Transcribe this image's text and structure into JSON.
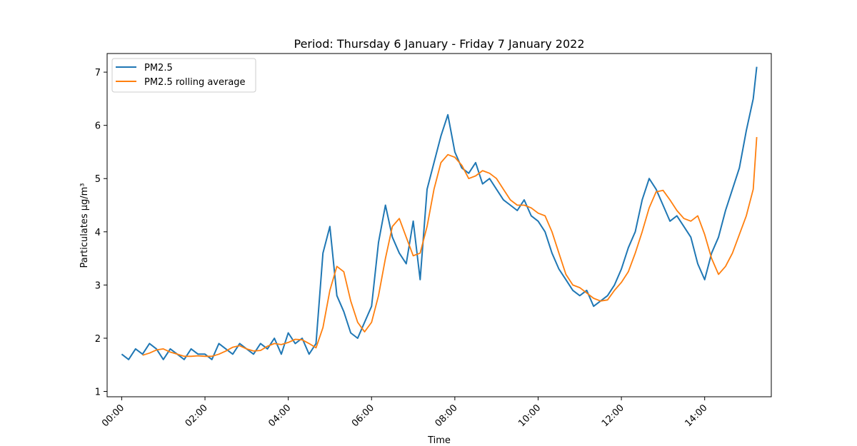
{
  "chart_data": {
    "type": "line",
    "title": "Period: Thursday 6 January - Friday 7 January 2022",
    "xlabel": "Time",
    "ylabel": "Particulates µg/m³",
    "xlim": [
      "23:39",
      "15:36"
    ],
    "ylim": [
      0.9,
      7.35
    ],
    "x_ticks": [
      "00:00",
      "02:00",
      "04:00",
      "06:00",
      "08:00",
      "10:00",
      "12:00",
      "14:00"
    ],
    "y_ticks": [
      1,
      2,
      3,
      4,
      5,
      6,
      7
    ],
    "grid": false,
    "legend_position": "upper-left",
    "colors": {
      "pm25": "#1f77b4",
      "rolling": "#ff7f0e"
    },
    "series": [
      {
        "name": "PM2.5",
        "x": [
          "00:00",
          "00:10",
          "00:20",
          "00:30",
          "00:40",
          "00:50",
          "01:00",
          "01:10",
          "01:20",
          "01:30",
          "01:40",
          "01:50",
          "02:00",
          "02:10",
          "02:20",
          "02:30",
          "02:40",
          "02:50",
          "03:00",
          "03:10",
          "03:20",
          "03:30",
          "03:40",
          "03:50",
          "04:00",
          "04:10",
          "04:20",
          "04:30",
          "04:40",
          "04:50",
          "05:00",
          "05:10",
          "05:20",
          "05:30",
          "05:40",
          "05:50",
          "06:00",
          "06:10",
          "06:20",
          "06:30",
          "06:40",
          "06:50",
          "07:00",
          "07:10",
          "07:20",
          "07:30",
          "07:40",
          "07:50",
          "08:00",
          "08:10",
          "08:20",
          "08:30",
          "08:40",
          "08:50",
          "09:00",
          "09:10",
          "09:20",
          "09:30",
          "09:40",
          "09:50",
          "10:00",
          "10:10",
          "10:20",
          "10:30",
          "10:40",
          "10:50",
          "11:00",
          "11:10",
          "11:20",
          "11:30",
          "11:40",
          "11:50",
          "12:00",
          "12:10",
          "12:20",
          "12:30",
          "12:40",
          "12:50",
          "13:00",
          "13:10",
          "13:20",
          "13:30",
          "13:40",
          "13:50",
          "14:00",
          "14:10",
          "14:20",
          "14:30",
          "14:40",
          "14:50",
          "15:00",
          "15:10",
          "15:15"
        ],
        "values": [
          1.7,
          1.6,
          1.8,
          1.7,
          1.9,
          1.8,
          1.6,
          1.8,
          1.7,
          1.6,
          1.8,
          1.7,
          1.7,
          1.6,
          1.9,
          1.8,
          1.7,
          1.9,
          1.8,
          1.7,
          1.9,
          1.8,
          2.0,
          1.7,
          2.1,
          1.9,
          2.0,
          1.7,
          1.9,
          3.6,
          4.1,
          2.8,
          2.5,
          2.1,
          2.0,
          2.3,
          2.6,
          3.8,
          4.5,
          3.9,
          3.6,
          3.4,
          4.2,
          3.1,
          4.8,
          5.3,
          5.8,
          6.2,
          5.5,
          5.2,
          5.1,
          5.3,
          4.9,
          5.0,
          4.8,
          4.6,
          4.5,
          4.4,
          4.6,
          4.3,
          4.2,
          4.0,
          3.6,
          3.3,
          3.1,
          2.9,
          2.8,
          2.9,
          2.6,
          2.7,
          2.8,
          3.0,
          3.3,
          3.7,
          4.0,
          4.6,
          5.0,
          4.8,
          4.5,
          4.2,
          4.3,
          4.1,
          3.9,
          3.4,
          3.1,
          3.6,
          3.9,
          4.4,
          4.8,
          5.2,
          5.9,
          6.5,
          7.1
        ]
      },
      {
        "name": "PM2.5 rolling average",
        "x": [
          "00:30",
          "00:40",
          "00:50",
          "01:00",
          "01:10",
          "01:20",
          "01:30",
          "01:40",
          "01:50",
          "02:00",
          "02:10",
          "02:20",
          "02:30",
          "02:40",
          "02:50",
          "03:00",
          "03:10",
          "03:20",
          "03:30",
          "03:40",
          "03:50",
          "04:00",
          "04:10",
          "04:20",
          "04:30",
          "04:40",
          "04:50",
          "05:00",
          "05:10",
          "05:20",
          "05:30",
          "05:40",
          "05:50",
          "06:00",
          "06:10",
          "06:20",
          "06:30",
          "06:40",
          "06:50",
          "07:00",
          "07:10",
          "07:20",
          "07:30",
          "07:40",
          "07:50",
          "08:00",
          "08:10",
          "08:20",
          "08:30",
          "08:40",
          "08:50",
          "09:00",
          "09:10",
          "09:20",
          "09:30",
          "09:40",
          "09:50",
          "10:00",
          "10:10",
          "10:20",
          "10:30",
          "10:40",
          "10:50",
          "11:00",
          "11:10",
          "11:20",
          "11:30",
          "11:40",
          "11:50",
          "12:00",
          "12:10",
          "12:20",
          "12:30",
          "12:40",
          "12:50",
          "13:00",
          "13:10",
          "13:20",
          "13:30",
          "13:40",
          "13:50",
          "14:00",
          "14:10",
          "14:20",
          "14:30",
          "14:40",
          "14:50",
          "15:00",
          "15:10",
          "15:15"
        ],
        "values": [
          1.68,
          1.72,
          1.78,
          1.8,
          1.74,
          1.7,
          1.66,
          1.66,
          1.67,
          1.66,
          1.66,
          1.7,
          1.76,
          1.83,
          1.86,
          1.8,
          1.76,
          1.77,
          1.85,
          1.9,
          1.88,
          1.92,
          1.98,
          1.97,
          1.9,
          1.82,
          2.2,
          2.9,
          3.35,
          3.25,
          2.7,
          2.3,
          2.12,
          2.3,
          2.8,
          3.5,
          4.1,
          4.25,
          3.9,
          3.55,
          3.6,
          4.1,
          4.8,
          5.3,
          5.45,
          5.4,
          5.25,
          5.0,
          5.05,
          5.15,
          5.1,
          5.0,
          4.8,
          4.6,
          4.5,
          4.5,
          4.45,
          4.35,
          4.3,
          4.0,
          3.6,
          3.2,
          3.0,
          2.95,
          2.85,
          2.75,
          2.7,
          2.72,
          2.9,
          3.05,
          3.25,
          3.6,
          4.0,
          4.45,
          4.75,
          4.78,
          4.6,
          4.4,
          4.25,
          4.2,
          4.3,
          3.95,
          3.5,
          3.2,
          3.35,
          3.6,
          3.95,
          4.3,
          4.8,
          5.78
        ]
      }
    ]
  }
}
